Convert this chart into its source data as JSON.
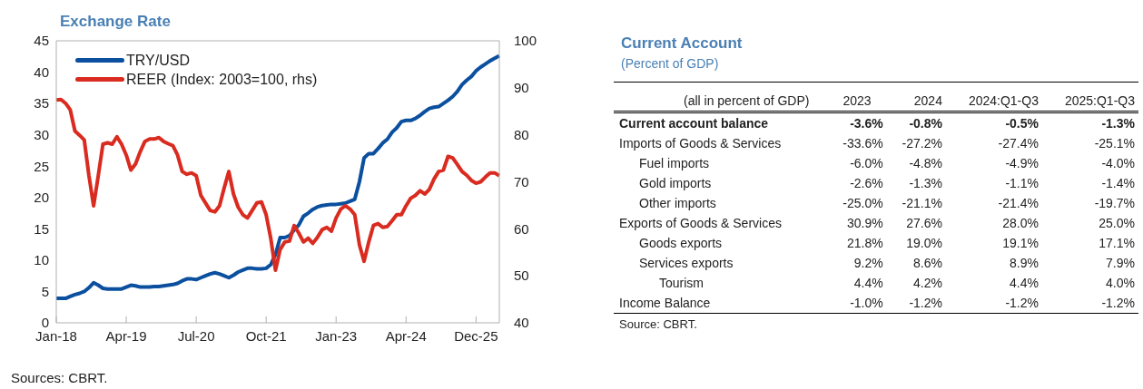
{
  "chart_data": [
    {
      "type": "line",
      "title": "Exchange Rate",
      "categories": [
        "Jan-18",
        null,
        null,
        null,
        null,
        null,
        null,
        null,
        null,
        null,
        null,
        null,
        null,
        null,
        null,
        "Apr-19",
        null,
        null,
        null,
        null,
        null,
        null,
        null,
        null,
        null,
        null,
        null,
        null,
        null,
        null,
        "Jul-20",
        null,
        null,
        null,
        null,
        null,
        null,
        null,
        null,
        null,
        null,
        null,
        null,
        null,
        null,
        "Oct-21",
        null,
        null,
        null,
        null,
        null,
        null,
        null,
        null,
        null,
        null,
        null,
        null,
        null,
        null,
        "Jan-23",
        null,
        null,
        null,
        null,
        null,
        null,
        null,
        null,
        null,
        null,
        null,
        null,
        null,
        null,
        "Apr-24",
        null,
        null,
        null,
        null,
        null,
        null,
        null,
        null,
        null,
        null,
        null,
        null,
        null,
        null,
        "Dec-25",
        null,
        null,
        null,
        null,
        null
      ],
      "series": [
        {
          "name": "TRY/USD",
          "color": "#0b4f9f",
          "values": [
            3.9,
            3.9,
            3.9,
            4.2,
            4.5,
            4.7,
            5.0,
            5.6,
            6.4,
            6.0,
            5.5,
            5.4,
            5.4,
            5.4,
            5.4,
            5.7,
            6.0,
            5.9,
            5.7,
            5.7,
            5.7,
            5.8,
            5.8,
            5.9,
            6.0,
            6.1,
            6.3,
            6.7,
            7.0,
            7.0,
            6.9,
            7.2,
            7.5,
            7.8,
            8.0,
            7.8,
            7.5,
            7.2,
            7.6,
            8.1,
            8.4,
            8.7,
            8.7,
            8.6,
            8.6,
            8.7,
            9.3,
            10.9,
            13.6,
            13.6,
            13.9,
            14.8,
            15.6,
            17.0,
            17.5,
            18.1,
            18.5,
            18.7,
            18.8,
            18.9,
            18.9,
            19.0,
            19.1,
            19.4,
            19.7,
            22.5,
            26.3,
            27.0,
            27.0,
            27.8,
            28.7,
            29.3,
            30.4,
            31.1,
            32.1,
            32.3,
            32.3,
            32.6,
            33.1,
            33.7,
            34.2,
            34.4,
            34.5,
            35.0,
            35.5,
            36.1,
            36.9,
            38.0,
            38.7,
            39.3,
            40.2,
            40.8,
            41.3,
            41.8,
            42.2,
            42.6
          ]
        },
        {
          "name": "REER (Index: 2003=100, rhs)",
          "color": "#d92b1f",
          "axis": "y2",
          "values": [
            87.4,
            87.5,
            86.7,
            85.3,
            80.8,
            79.9,
            78.9,
            71.3,
            64.9,
            71.3,
            78.0,
            78.3,
            78.0,
            79.6,
            78.0,
            75.7,
            72.5,
            73.8,
            76.4,
            78.6,
            79.1,
            79.1,
            79.4,
            78.6,
            78.1,
            77.7,
            75.7,
            72.2,
            71.6,
            71.9,
            71.3,
            67.1,
            65.5,
            63.9,
            63.6,
            64.9,
            68.7,
            72.2,
            67.4,
            64.6,
            63.0,
            62.3,
            63.9,
            65.5,
            65.7,
            63.0,
            57.9,
            51.2,
            55.6,
            57.2,
            57.4,
            60.7,
            59.1,
            57.2,
            58.0,
            56.9,
            58.2,
            59.8,
            60.3,
            59.5,
            62.3,
            64.2,
            64.9,
            64.2,
            63.0,
            56.6,
            53.1,
            57.2,
            60.7,
            61.1,
            60.3,
            60.5,
            61.7,
            63.0,
            63.0,
            64.9,
            66.5,
            67.1,
            68.1,
            67.4,
            68.4,
            70.6,
            72.2,
            72.5,
            75.4,
            75.1,
            73.7,
            72.2,
            71.4,
            70.3,
            69.7,
            70.0,
            71.0,
            71.9,
            71.9,
            71.3
          ]
        }
      ],
      "ylim": [
        0,
        45
      ],
      "yticks": [
        0,
        5,
        10,
        15,
        20,
        25,
        30,
        35,
        40,
        45
      ],
      "y2lim": [
        40,
        100
      ],
      "y2ticks": [
        40,
        50,
        60,
        70,
        80,
        90,
        100
      ],
      "legend": "top left",
      "marker": "none",
      "annotations": [
        "Sources: CBRT."
      ]
    },
    {
      "type": "other",
      "title": "Current Account",
      "subtitle": "(Percent of GDP)",
      "ylabel": "(all in percent of GDP)",
      "categories": [
        "2023",
        "2024",
        "2024:Q1-Q3",
        "2025:Q1-Q3"
      ],
      "y_categories": [
        "Current account balance",
        "Imports of Goods & Services",
        "Fuel imports",
        "Gold imports",
        "Other imports",
        "Exports of Goods & Services",
        "Goods exports",
        "Services exports",
        "Tourism",
        "Income Balance"
      ],
      "cell_labels": [
        [
          "-3.6%",
          "-0.8%",
          "-0.5%",
          "-1.3%"
        ],
        [
          "-33.6%",
          "-27.2%",
          "-27.4%",
          "-25.1%"
        ],
        [
          "-6.0%",
          "-4.8%",
          "-4.9%",
          "-4.0%"
        ],
        [
          "-2.6%",
          "-1.3%",
          "-1.1%",
          "-1.4%"
        ],
        [
          "-25.0%",
          "-21.1%",
          "-21.4%",
          "-19.7%"
        ],
        [
          "30.9%",
          "27.6%",
          "28.0%",
          "25.0%"
        ],
        [
          "21.8%",
          "19.0%",
          "19.1%",
          "17.1%"
        ],
        [
          "9.2%",
          "8.6%",
          "8.9%",
          "7.9%"
        ],
        [
          "4.4%",
          "4.2%",
          "4.4%",
          "4.0%"
        ],
        [
          "-1.0%",
          "-1.2%",
          "-1.2%",
          "-1.2%"
        ]
      ],
      "annotations": [
        "Source: CBRT."
      ]
    }
  ]
}
